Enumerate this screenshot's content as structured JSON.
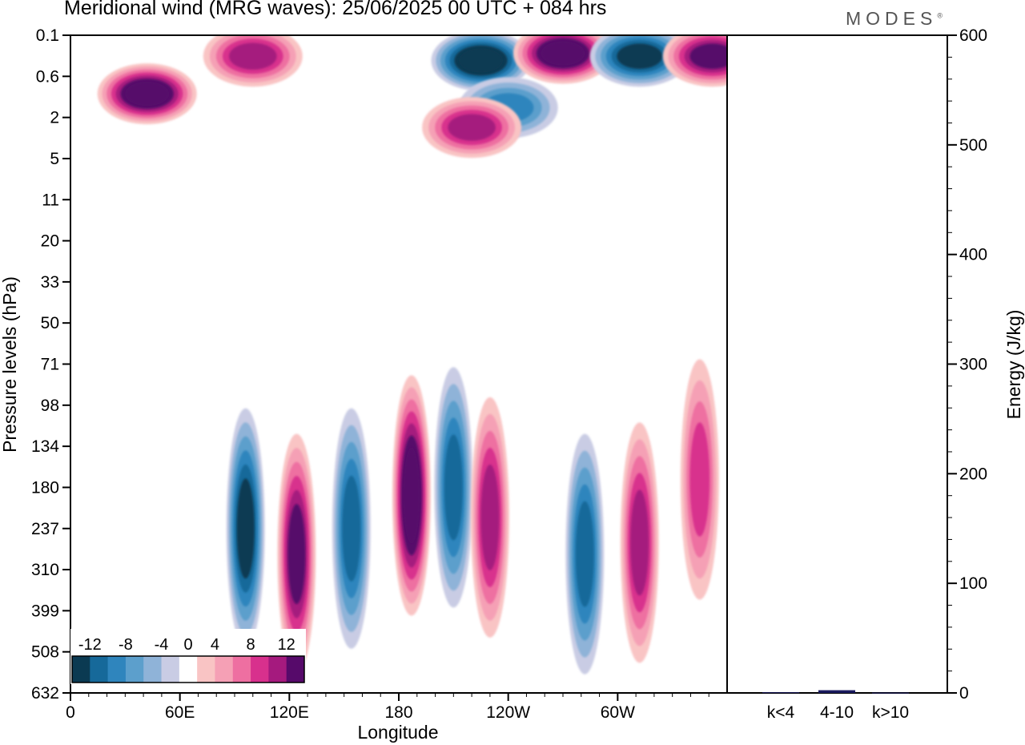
{
  "title": "Meridional wind (MRG waves):  25/06/2025  00 UTC  + 084 hrs",
  "brand": "MODES",
  "chart_data": [
    {
      "type": "heatmap",
      "title": "Meridional wind (MRG waves):  25/06/2025  00 UTC  + 084 hrs",
      "xlabel": "Longitude",
      "ylabel": "Pressure levels (hPa)",
      "x_ticks": [
        "0",
        "60E",
        "120E",
        "180",
        "120W",
        "60W"
      ],
      "y_ticks": [
        "0.1",
        "0.6",
        "2",
        "5",
        "11",
        "20",
        "33",
        "50",
        "71",
        "98",
        "134",
        "180",
        "237",
        "310",
        "399",
        "508",
        "632"
      ],
      "colorbar": {
        "labels": [
          "-12",
          "-8",
          "-4",
          "0",
          "4",
          "8",
          "12"
        ],
        "levels": [
          -14,
          -12,
          -10,
          -8,
          -6,
          -4,
          -2,
          2,
          4,
          6,
          8,
          10,
          12,
          14
        ],
        "colors": [
          "#0b3a52",
          "#16699a",
          "#2f85bd",
          "#5c9fcc",
          "#8fb3d8",
          "#c9cce4",
          "#ffffff",
          "#f9c4c4",
          "#f5a0b5",
          "#ee6fa1",
          "#d8308d",
          "#a51a7e",
          "#560a6a"
        ]
      },
      "features": [
        {
          "lon": 42,
          "lev": 1.0,
          "value": 14
        },
        {
          "lon": 100,
          "lev": 0.25,
          "value": 10
        },
        {
          "lon": 225,
          "lev": 0.3,
          "value": -14
        },
        {
          "lon": 270,
          "lev": 0.22,
          "value": 14
        },
        {
          "lon": 312,
          "lev": 0.25,
          "value": -12
        },
        {
          "lon": 352,
          "lev": 0.25,
          "value": 12
        },
        {
          "lon": 240,
          "lev": 1.5,
          "value": -8
        },
        {
          "lon": 220,
          "lev": 2.5,
          "value": 10
        },
        {
          "lon": 96,
          "lev": 237,
          "value": -12
        },
        {
          "lon": 124,
          "lev": 280,
          "value": 12
        },
        {
          "lon": 154,
          "lev": 237,
          "value": -10
        },
        {
          "lon": 187,
          "lev": 190,
          "value": 14
        },
        {
          "lon": 210,
          "lev": 180,
          "value": -10
        },
        {
          "lon": 230,
          "lev": 220,
          "value": 10
        },
        {
          "lon": 282,
          "lev": 280,
          "value": -10
        },
        {
          "lon": 312,
          "lev": 260,
          "value": 10
        },
        {
          "lon": 345,
          "lev": 170,
          "value": 8
        }
      ]
    },
    {
      "type": "bar",
      "categories": [
        "k<4",
        "4-10",
        "k>10"
      ],
      "values": [
        0.6,
        2.5,
        0.3
      ],
      "ylabel": "Energy (J/kg)",
      "ylim": [
        0,
        600
      ],
      "y_ticks": [
        "0",
        "100",
        "200",
        "300",
        "400",
        "500",
        "600"
      ],
      "bar_color": "#1a1a5e"
    }
  ]
}
